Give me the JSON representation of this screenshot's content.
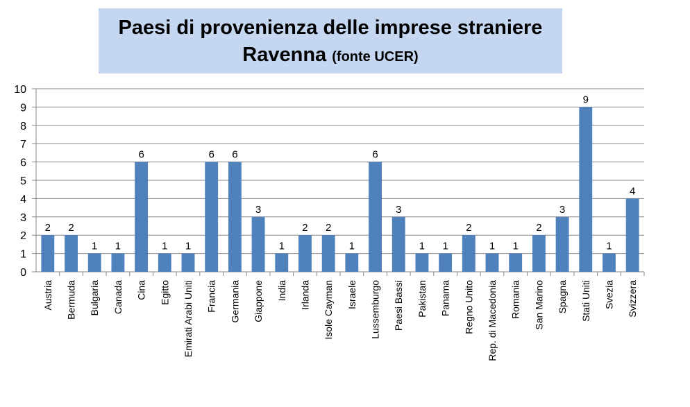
{
  "header": {
    "title_line1": "Paesi di provenienza delle imprese straniere",
    "title_line2": "Ravenna",
    "title_source": "(fonte UCER)"
  },
  "chart_data": {
    "type": "bar",
    "title": "Paesi di provenienza delle imprese straniere Ravenna (fonte UCER)",
    "xlabel": "",
    "ylabel": "",
    "ylim": [
      0,
      10
    ],
    "yticks": [
      0,
      1,
      2,
      3,
      4,
      5,
      6,
      7,
      8,
      9,
      10
    ],
    "grid": true,
    "legend": "none",
    "bar_color": "#4f81bd",
    "grid_color": "#868686",
    "categories": [
      "Austria",
      "Bermuda",
      "Bulgaria",
      "Canada",
      "Cina",
      "Egitto",
      "Emirati Arabi Uniti",
      "Francia",
      "Germania",
      "Giappone",
      "India",
      "Irlanda",
      "Isole Cayman",
      "Israele",
      "Lussemburgo",
      "Paesi Bassi",
      "Pakistan",
      "Panama",
      "Regno Unito",
      "Rep. di Macedonia",
      "Romania",
      "San Marino",
      "Spagna",
      "Stati Uniti",
      "Svezia",
      "Svizzera"
    ],
    "values": [
      2,
      2,
      1,
      1,
      6,
      1,
      1,
      6,
      6,
      3,
      1,
      2,
      2,
      1,
      6,
      3,
      1,
      1,
      2,
      1,
      1,
      2,
      3,
      9,
      1,
      4
    ]
  }
}
